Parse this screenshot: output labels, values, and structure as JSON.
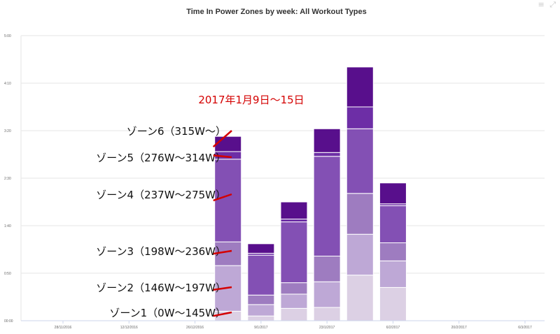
{
  "chart_data": {
    "type": "bar",
    "stacked": true,
    "title": "Time In Power Zones by week: All Workout Types",
    "y_ticks": [
      "00:00",
      "0:50",
      "1:40",
      "2:30",
      "3:20",
      "4:10",
      "5:00"
    ],
    "ylim_minutes": [
      0,
      300
    ],
    "x_ticks": [
      "28/11/2016",
      "12/12/2016",
      "26/12/2016",
      "9/1/2017",
      "23/1/2017",
      "6/2/2017",
      "20/2/2017",
      "6/3/2017"
    ],
    "grid": true,
    "series": [
      {
        "color": "#dcd0e4",
        "values": [
          10,
          5,
          13,
          14,
          48,
          35
        ]
      },
      {
        "color": "#bea8d6",
        "values": [
          48,
          12,
          15,
          27,
          43,
          28
        ]
      },
      {
        "color": "#9e7cc0",
        "values": [
          25,
          10,
          12,
          27,
          43,
          19
        ]
      },
      {
        "color": "#8350b4",
        "values": [
          87,
          42,
          64,
          105,
          68,
          39
        ]
      },
      {
        "color": "#6d2ea6",
        "values": [
          8,
          2,
          3,
          4,
          23,
          2
        ]
      },
      {
        "color": "#580f8c",
        "values": [
          16,
          10,
          18,
          25,
          42,
          22
        ]
      }
    ],
    "bar_weeks": [
      "2/1/2017",
      "9/1/2017",
      "16/1/2017",
      "23/1/2017",
      "30/1/2017",
      "6/2/2017"
    ],
    "annotation_title": "2017年1月9日〜15日",
    "annotation_color": "#d40000",
    "zone_labels": [
      {
        "text": "ゾーン6（315W〜）",
        "series_index": 5
      },
      {
        "text": "ゾーン5（276W〜314W）",
        "series_index": 4
      },
      {
        "text": "ゾーン4（237W〜275W）",
        "series_index": 3
      },
      {
        "text": "ゾーン3（198W〜236W）",
        "series_index": 2
      },
      {
        "text": "ゾーン2（146W〜197W）",
        "series_index": 1
      },
      {
        "text": "ゾーン1（0W〜145W）",
        "series_index": 0
      }
    ]
  },
  "toolbar": {
    "menu_icon": "≡",
    "expand_icon": "⤢"
  }
}
